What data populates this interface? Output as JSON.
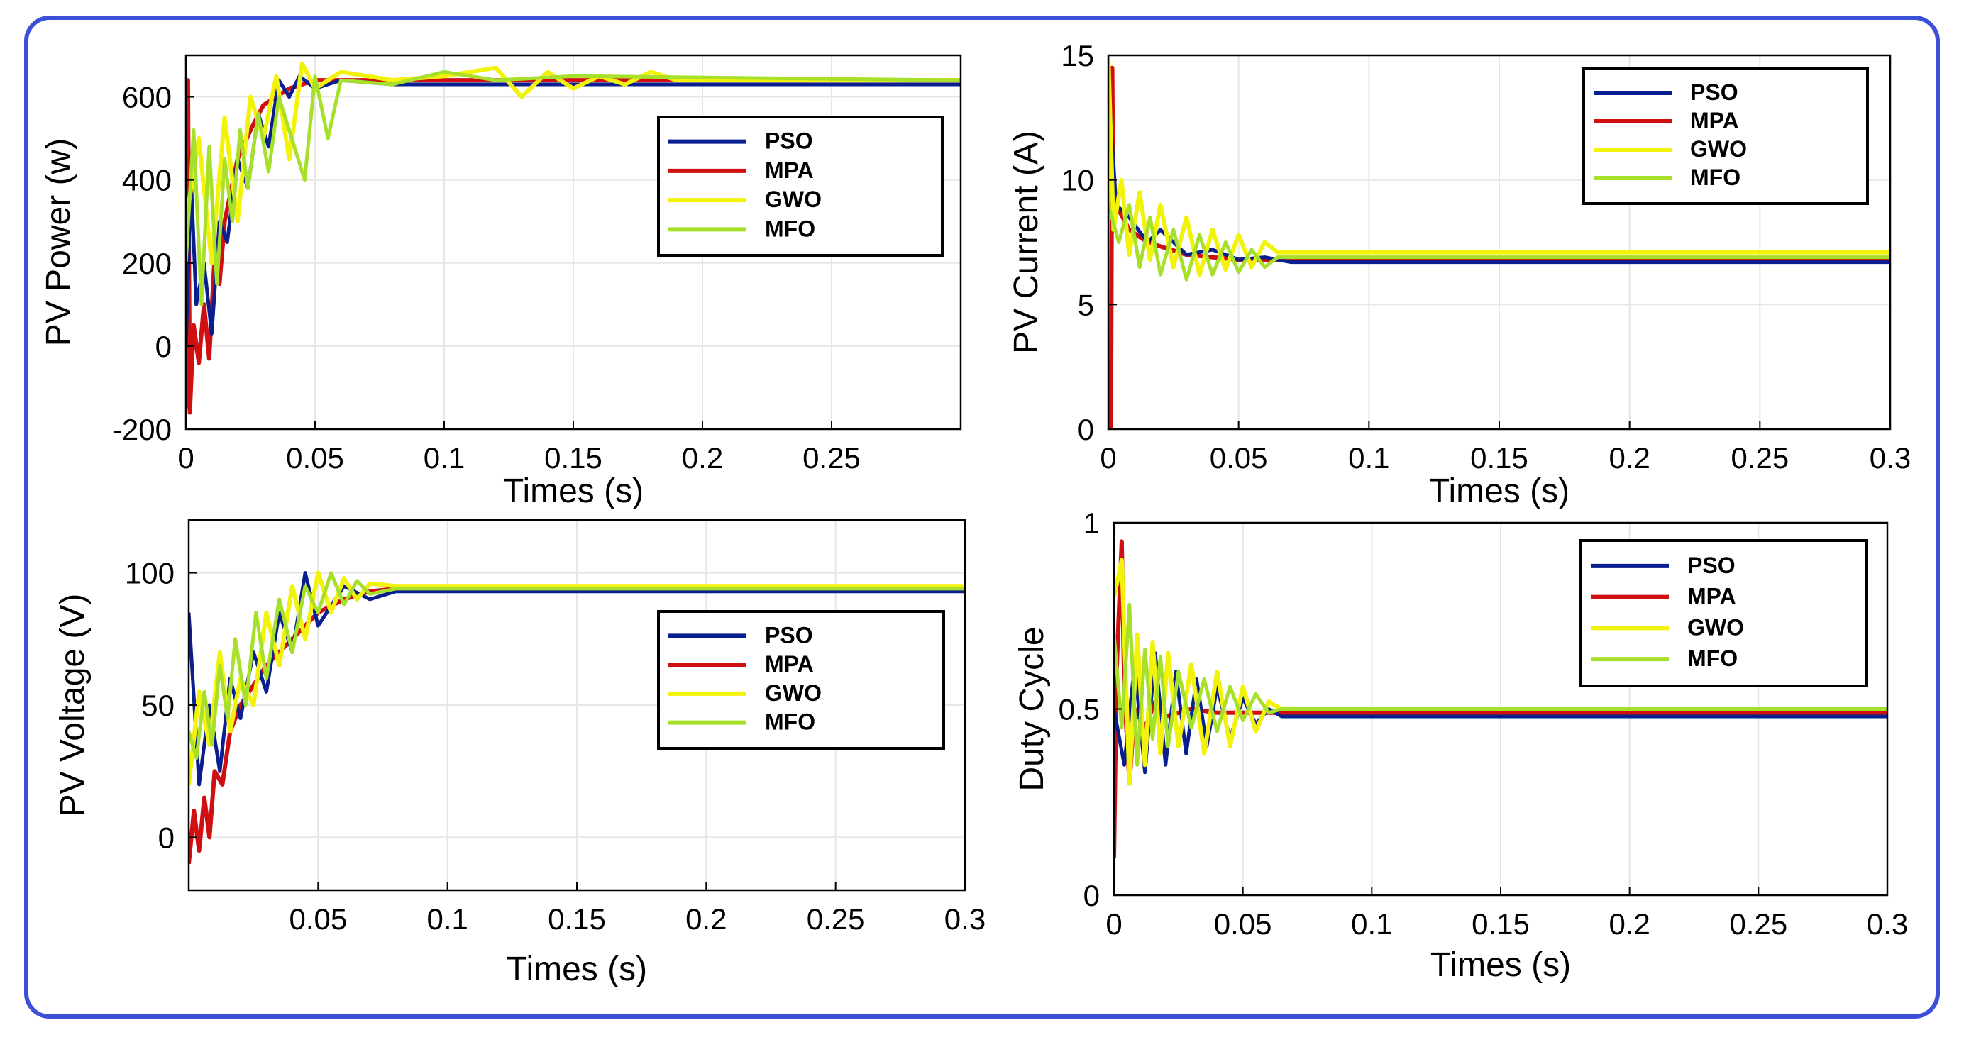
{
  "colors": {
    "frame": "#3b4fd8",
    "PSO": "#0a1f8f",
    "MPA": "#d01010",
    "GWO": "#f2f20a",
    "MFO": "#a6e02a",
    "grid": "#e6e6e6"
  },
  "chart_data": [
    {
      "type": "line",
      "ylabel": "PV Power (w)",
      "xlabel": "Times (s)",
      "xlim": [
        0,
        0.3
      ],
      "ylim": [
        -200,
        700
      ],
      "xticks": [
        0,
        0.05,
        0.1,
        0.15,
        0.2,
        0.25
      ],
      "xtick_labels": [
        "0",
        "0.05",
        "0.1",
        "0.15",
        "0.2",
        "0.25"
      ],
      "yticks": [
        -200,
        0,
        200,
        400,
        600
      ],
      "ytick_labels": [
        "-200",
        "0",
        "200",
        "400",
        "600"
      ],
      "legend": [
        "PSO",
        "MPA",
        "GWO",
        "MFO"
      ],
      "legend_position": "center-right",
      "series": [
        {
          "name": "PSO",
          "x": [
            0,
            0.002,
            0.004,
            0.007,
            0.01,
            0.013,
            0.016,
            0.02,
            0.024,
            0.028,
            0.032,
            0.036,
            0.04,
            0.044,
            0.05,
            0.06,
            0.08,
            0.1,
            0.3
          ],
          "y": [
            0,
            400,
            100,
            200,
            30,
            300,
            250,
            450,
            380,
            560,
            480,
            640,
            600,
            650,
            620,
            640,
            630,
            630,
            630
          ]
        },
        {
          "name": "MPA",
          "x": [
            0,
            0.0008,
            0.0015,
            0.003,
            0.005,
            0.007,
            0.009,
            0.011,
            0.013,
            0.015,
            0.02,
            0.025,
            0.03,
            0.04,
            0.05,
            0.3
          ],
          "y": [
            -150,
            640,
            -160,
            50,
            -40,
            100,
            -30,
            200,
            150,
            300,
            450,
            520,
            580,
            620,
            640,
            640
          ]
        },
        {
          "name": "GWO",
          "x": [
            0,
            0.005,
            0.01,
            0.015,
            0.02,
            0.025,
            0.03,
            0.035,
            0.04,
            0.045,
            0.05,
            0.06,
            0.08,
            0.1,
            0.12,
            0.13,
            0.14,
            0.15,
            0.16,
            0.17,
            0.18,
            0.19,
            0.3
          ],
          "y": [
            300,
            500,
            200,
            550,
            300,
            600,
            500,
            650,
            450,
            680,
            620,
            660,
            640,
            650,
            670,
            600,
            660,
            620,
            650,
            630,
            660,
            640,
            640
          ]
        },
        {
          "name": "MFO",
          "x": [
            0,
            0.003,
            0.006,
            0.009,
            0.012,
            0.015,
            0.018,
            0.021,
            0.024,
            0.028,
            0.032,
            0.036,
            0.04,
            0.046,
            0.05,
            0.055,
            0.06,
            0.08,
            0.1,
            0.12,
            0.15,
            0.3
          ],
          "y": [
            200,
            520,
            100,
            480,
            150,
            450,
            300,
            520,
            380,
            560,
            420,
            600,
            520,
            400,
            650,
            500,
            640,
            630,
            660,
            640,
            650,
            640
          ]
        }
      ]
    },
    {
      "type": "line",
      "ylabel": "PV Current (A)",
      "xlabel": "Times (s)",
      "xlim": [
        0,
        0.3
      ],
      "ylim": [
        0,
        15
      ],
      "xticks": [
        0,
        0.05,
        0.1,
        0.15,
        0.2,
        0.25,
        0.3
      ],
      "xtick_labels": [
        "0",
        "0.05",
        "0.1",
        "0.15",
        "0.2",
        "0.25",
        "0.3"
      ],
      "yticks": [
        0,
        5,
        10,
        15
      ],
      "ytick_labels": [
        "0",
        "5",
        "10",
        "15"
      ],
      "legend": [
        "PSO",
        "MPA",
        "GWO",
        "MFO"
      ],
      "legend_position": "top-right",
      "series": [
        {
          "name": "PSO",
          "x": [
            0,
            0.003,
            0.008,
            0.015,
            0.02,
            0.03,
            0.04,
            0.05,
            0.06,
            0.07,
            0.3
          ],
          "y": [
            14,
            9,
            8.5,
            7.5,
            8,
            7,
            7.2,
            6.8,
            6.9,
            6.7,
            6.7
          ]
        },
        {
          "name": "MPA",
          "x": [
            0,
            0.001,
            0.0015,
            0.002,
            0.004,
            0.008,
            0.015,
            0.03,
            0.05,
            0.065,
            0.3
          ],
          "y": [
            0,
            0,
            14.5,
            8.5,
            8.8,
            8,
            7.5,
            7,
            6.8,
            6.8,
            6.8
          ]
        },
        {
          "name": "GWO",
          "x": [
            0,
            0.002,
            0.005,
            0.008,
            0.012,
            0.016,
            0.02,
            0.025,
            0.03,
            0.035,
            0.04,
            0.045,
            0.05,
            0.055,
            0.06,
            0.065,
            0.3
          ],
          "y": [
            15,
            8,
            10,
            7,
            9.5,
            6.8,
            9,
            6.5,
            8.5,
            6.2,
            8,
            6.4,
            7.8,
            6.5,
            7.5,
            7.1,
            7.1
          ]
        },
        {
          "name": "MFO",
          "x": [
            0,
            0.004,
            0.008,
            0.012,
            0.016,
            0.02,
            0.025,
            0.03,
            0.035,
            0.04,
            0.045,
            0.05,
            0.055,
            0.06,
            0.065,
            0.3
          ],
          "y": [
            9,
            7.5,
            9,
            6.5,
            8.5,
            6.2,
            8,
            6,
            7.8,
            6.2,
            7.5,
            6.3,
            7.2,
            6.5,
            6.9,
            6.9
          ]
        }
      ]
    },
    {
      "type": "line",
      "ylabel": "PV Voltage (V)",
      "xlabel": "Times (s)",
      "xlim": [
        0,
        0.3
      ],
      "ylim": [
        -20,
        120
      ],
      "xticks": [
        0.05,
        0.1,
        0.15,
        0.2,
        0.25,
        0.3
      ],
      "xtick_labels": [
        "0.05",
        "0.1",
        "0.15",
        "0.2",
        "0.25",
        "0.3"
      ],
      "yticks": [
        0,
        50,
        100
      ],
      "ytick_labels": [
        "0",
        "50",
        "100"
      ],
      "legend": [
        "PSO",
        "MPA",
        "GWO",
        "MFO"
      ],
      "legend_position": "center-right",
      "series": [
        {
          "name": "PSO",
          "x": [
            0,
            0.004,
            0.008,
            0.012,
            0.016,
            0.02,
            0.025,
            0.03,
            0.035,
            0.04,
            0.045,
            0.05,
            0.06,
            0.07,
            0.08,
            0.3
          ],
          "y": [
            85,
            20,
            50,
            25,
            60,
            45,
            70,
            55,
            85,
            70,
            100,
            80,
            95,
            90,
            93,
            93
          ]
        },
        {
          "name": "MPA",
          "x": [
            0,
            0.002,
            0.004,
            0.006,
            0.008,
            0.01,
            0.013,
            0.016,
            0.02,
            0.03,
            0.04,
            0.05,
            0.06,
            0.07,
            0.08,
            0.3
          ],
          "y": [
            -10,
            10,
            -5,
            15,
            0,
            25,
            20,
            40,
            50,
            65,
            75,
            85,
            90,
            93,
            94,
            94
          ]
        },
        {
          "name": "GWO",
          "x": [
            0,
            0.004,
            0.008,
            0.012,
            0.016,
            0.02,
            0.025,
            0.03,
            0.035,
            0.04,
            0.045,
            0.05,
            0.055,
            0.06,
            0.065,
            0.07,
            0.08,
            0.3
          ],
          "y": [
            20,
            55,
            35,
            70,
            40,
            60,
            50,
            85,
            65,
            95,
            75,
            100,
            85,
            98,
            90,
            96,
            95,
            95
          ]
        },
        {
          "name": "MFO",
          "x": [
            0,
            0.003,
            0.006,
            0.009,
            0.012,
            0.015,
            0.018,
            0.022,
            0.026,
            0.03,
            0.035,
            0.04,
            0.045,
            0.05,
            0.055,
            0.06,
            0.065,
            0.07,
            0.08,
            0.3
          ],
          "y": [
            40,
            30,
            55,
            35,
            65,
            45,
            75,
            50,
            85,
            60,
            90,
            70,
            95,
            85,
            100,
            88,
            97,
            92,
            94,
            94
          ]
        }
      ]
    },
    {
      "type": "line",
      "ylabel": "Duty Cycle",
      "xlabel": "Times (s)",
      "xlim": [
        0,
        0.3
      ],
      "ylim": [
        0,
        1
      ],
      "xticks": [
        0,
        0.05,
        0.1,
        0.15,
        0.2,
        0.25,
        0.3
      ],
      "xtick_labels": [
        "0",
        "0.05",
        "0.1",
        "0.15",
        "0.2",
        "0.25",
        "0.3"
      ],
      "yticks": [
        0,
        0.5,
        1
      ],
      "ytick_labels": [
        "0",
        "0.5",
        "1"
      ],
      "legend": [
        "PSO",
        "MPA",
        "GWO",
        "MFO"
      ],
      "legend_position": "top-right",
      "series": [
        {
          "name": "PSO",
          "x": [
            0,
            0.004,
            0.008,
            0.012,
            0.016,
            0.02,
            0.024,
            0.028,
            0.032,
            0.036,
            0.04,
            0.045,
            0.05,
            0.055,
            0.06,
            0.065,
            0.3
          ],
          "y": [
            0.5,
            0.35,
            0.62,
            0.33,
            0.65,
            0.35,
            0.6,
            0.38,
            0.58,
            0.4,
            0.56,
            0.42,
            0.53,
            0.46,
            0.5,
            0.48,
            0.48
          ]
        },
        {
          "name": "MPA",
          "x": [
            0,
            0.001,
            0.003,
            0.004,
            0.006,
            0.008,
            0.012,
            0.016,
            0.02,
            0.03,
            0.04,
            0.05,
            0.065,
            0.3
          ],
          "y": [
            0.1,
            0.6,
            0.95,
            0.55,
            0.3,
            0.5,
            0.45,
            0.52,
            0.48,
            0.5,
            0.49,
            0.49,
            0.49,
            0.49
          ]
        },
        {
          "name": "GWO",
          "x": [
            0,
            0.003,
            0.006,
            0.009,
            0.012,
            0.015,
            0.018,
            0.021,
            0.025,
            0.03,
            0.035,
            0.04,
            0.045,
            0.05,
            0.055,
            0.06,
            0.065,
            0.3
          ],
          "y": [
            0.8,
            0.9,
            0.3,
            0.7,
            0.35,
            0.68,
            0.38,
            0.65,
            0.4,
            0.62,
            0.38,
            0.6,
            0.4,
            0.56,
            0.44,
            0.52,
            0.5,
            0.5
          ]
        },
        {
          "name": "MFO",
          "x": [
            0,
            0.003,
            0.006,
            0.009,
            0.012,
            0.015,
            0.018,
            0.021,
            0.025,
            0.03,
            0.035,
            0.04,
            0.045,
            0.05,
            0.055,
            0.06,
            0.065,
            0.3
          ],
          "y": [
            0.7,
            0.45,
            0.78,
            0.35,
            0.66,
            0.42,
            0.64,
            0.4,
            0.6,
            0.45,
            0.58,
            0.44,
            0.56,
            0.47,
            0.54,
            0.49,
            0.5,
            0.5
          ]
        }
      ]
    }
  ]
}
